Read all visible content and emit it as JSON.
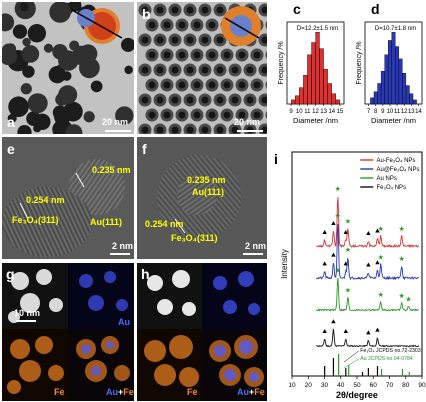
{
  "panels": {
    "a": {
      "label": "a",
      "scale": "20 nm"
    },
    "b": {
      "label": "b",
      "scale": "20 nm"
    },
    "c": {
      "label": "c",
      "annotation": "D=12.2±1.5 nm"
    },
    "d": {
      "label": "d",
      "annotation": "D=10.7±1.8 nm"
    },
    "e": {
      "label": "e",
      "scale": "2 nm",
      "dspacing_au": "0.235 nm",
      "dspacing_fe": "0.254 nm",
      "plane_au": "Au(111)",
      "plane_fe": "Fe₃O₄(311)"
    },
    "f": {
      "label": "f",
      "scale": "2 nm",
      "dspacing_au": "0.235 nm",
      "dspacing_fe": "0.254 nm",
      "plane_au": "Au(111)",
      "plane_fe": "Fe₃O₄(311)"
    },
    "g": {
      "label": "g",
      "scale": "10 nm",
      "map_au": "Au",
      "map_fe": "Fe",
      "map_merge_au": "Au",
      "map_merge_plus": "+",
      "map_merge_fe": "Fe"
    },
    "h": {
      "label": "h",
      "map_au": "Au",
      "map_fe": "Fe",
      "map_merge_au": "Au",
      "map_merge_plus": "+",
      "map_merge_fe": "Fe"
    },
    "i": {
      "label": "i"
    }
  },
  "colors": {
    "red": "#e03030",
    "blue": "#2838b8",
    "green": "#2a9a2a",
    "black": "#111111",
    "yellow": "#ffff00"
  },
  "chart_data": [
    {
      "type": "bar",
      "panel": "c",
      "xlabel": "Diameter /nm",
      "ylabel": "Frequency /%",
      "annotation": "D=12.2±1.5 nm",
      "tick_labels": [
        "9",
        "10",
        "11",
        "12",
        "13",
        "14",
        "15"
      ],
      "x": [
        9.25,
        9.75,
        10.25,
        10.75,
        11.25,
        11.75,
        12.25,
        12.75,
        13.25,
        13.75,
        14.25,
        14.75
      ],
      "values": [
        2,
        4,
        8,
        14,
        24,
        30,
        35,
        27,
        17,
        10,
        5,
        2
      ],
      "xlim": [
        8.5,
        15.5
      ],
      "color": "#e03030"
    },
    {
      "type": "bar",
      "panel": "d",
      "xlabel": "Diameter /nm",
      "ylabel": "Frequency /%",
      "annotation": "D=10.7±1.8 nm",
      "tick_labels": [
        "7",
        "8",
        "9",
        "10",
        "11",
        "12",
        "13",
        "14"
      ],
      "x": [
        7.5,
        8,
        8.5,
        9,
        9.5,
        10,
        10.5,
        11,
        11.5,
        12,
        12.5,
        13,
        13.5
      ],
      "values": [
        3,
        6,
        10,
        16,
        24,
        31,
        35,
        28,
        22,
        15,
        9,
        5,
        2
      ],
      "xlim": [
        6.5,
        14.5
      ],
      "color": "#2838b8"
    },
    {
      "type": "line",
      "panel": "i",
      "xlabel": "2θ/degree",
      "ylabel": "Intensity",
      "xlim": [
        10,
        90
      ],
      "x_ticks": [
        "10",
        "20",
        "30",
        "40",
        "50",
        "60",
        "70",
        "80",
        "90"
      ],
      "legend": [
        "Au-Fe₃O₄ NPs",
        "Au@Fe₃O₄ NPs",
        "Au NPs",
        "Fe₃O₄ NPs"
      ],
      "legend_position": "top-right",
      "series": [
        {
          "name": "Au-Fe₃O₄ NPs",
          "color": "#e03030",
          "offset": 3,
          "peaks": [
            [
              30.1,
              0.12
            ],
            [
              35.5,
              0.3
            ],
            [
              38.2,
              1.0
            ],
            [
              43.1,
              0.12
            ],
            [
              44.4,
              0.35
            ],
            [
              57,
              0.1
            ],
            [
              62.6,
              0.15
            ],
            [
              64.6,
              0.2
            ],
            [
              77.5,
              0.2
            ]
          ]
        },
        {
          "name": "Au@Fe₃O₄ NPs",
          "color": "#2838b8",
          "offset": 2,
          "peaks": [
            [
              30.1,
              0.12
            ],
            [
              35.5,
              0.28
            ],
            [
              38.2,
              1.0
            ],
            [
              43.1,
              0.12
            ],
            [
              44.4,
              0.38
            ],
            [
              57,
              0.1
            ],
            [
              62.6,
              0.14
            ],
            [
              64.6,
              0.25
            ],
            [
              77.5,
              0.22
            ]
          ]
        },
        {
          "name": "Au NPs",
          "color": "#2a9a2a",
          "offset": 1,
          "peaks": [
            [
              38.2,
              0.9
            ],
            [
              44.4,
              0.35
            ],
            [
              64.6,
              0.22
            ],
            [
              77.5,
              0.2
            ],
            [
              81.7,
              0.1
            ]
          ]
        },
        {
          "name": "Fe₃O₄ NPs",
          "color": "#111111",
          "offset": 0,
          "peaks": [
            [
              30.1,
              0.25
            ],
            [
              35.5,
              0.6
            ],
            [
              43.1,
              0.25
            ],
            [
              57,
              0.2
            ],
            [
              62.6,
              0.3
            ]
          ]
        }
      ],
      "markers_triangle": [
        30.1,
        35.5,
        43.1,
        57,
        62.6
      ],
      "markers_star": [
        38.2,
        44.4,
        64.6,
        77.5,
        81.7
      ],
      "reference_annotations": [
        "Fe₃O₄ JCPDS no.72-2303",
        "Au JCPDS no.04-0784"
      ],
      "reference_fe": [
        30.1,
        35.5,
        43.1,
        53.4,
        57,
        62.6
      ],
      "reference_au": [
        38.2,
        44.4,
        64.6,
        77.5,
        81.7
      ]
    }
  ]
}
